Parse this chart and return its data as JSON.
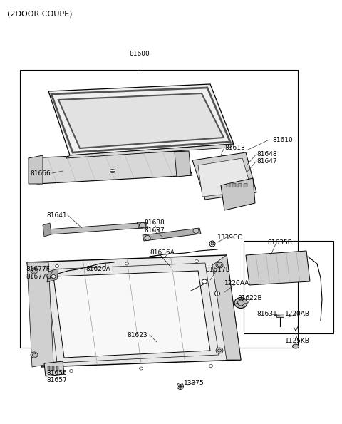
{
  "title": "(2DOOR COUPE)",
  "bg": "#ffffff",
  "fg": "#000000",
  "gray1": "#e8e8e8",
  "gray2": "#d0d0d0",
  "gray3": "#c0c0c0",
  "part_labels": {
    "81600": [
      196,
      75,
      "center"
    ],
    "81610": [
      382,
      196,
      "left"
    ],
    "81613": [
      315,
      207,
      "left"
    ],
    "81648": [
      360,
      216,
      "left"
    ],
    "81647": [
      360,
      226,
      "left"
    ],
    "81666": [
      42,
      243,
      "left"
    ],
    "81641": [
      65,
      302,
      "left"
    ],
    "81688": [
      202,
      312,
      "left"
    ],
    "81687": [
      202,
      323,
      "left"
    ],
    "1339CC": [
      305,
      333,
      "left"
    ],
    "81635B": [
      375,
      340,
      "left"
    ],
    "81636A": [
      210,
      354,
      "left"
    ],
    "81677F": [
      36,
      377,
      "left"
    ],
    "81677G": [
      36,
      388,
      "left"
    ],
    "81620A": [
      120,
      377,
      "left"
    ],
    "81617B": [
      288,
      378,
      "left"
    ],
    "1220AA": [
      315,
      397,
      "left"
    ],
    "81622B": [
      333,
      418,
      "left"
    ],
    "81631": [
      360,
      440,
      "left"
    ],
    "1220AB": [
      400,
      440,
      "left"
    ],
    "81623": [
      178,
      470,
      "left"
    ],
    "1125KB": [
      400,
      478,
      "left"
    ],
    "81656": [
      65,
      523,
      "left"
    ],
    "81657": [
      65,
      534,
      "left"
    ],
    "13375": [
      258,
      537,
      "left"
    ]
  },
  "main_box": [
    28,
    98,
    418,
    98,
    418,
    488,
    28,
    488
  ],
  "sub_box": [
    342,
    338,
    468,
    338,
    468,
    468,
    342,
    468
  ]
}
